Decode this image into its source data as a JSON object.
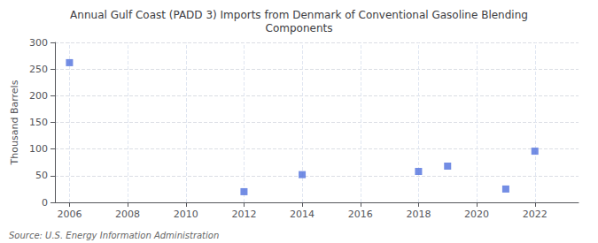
{
  "chart_data": {
    "type": "scatter",
    "title": "Annual Gulf Coast (PADD 3) Imports from Denmark of Conventional Gasoline Blending\nComponents",
    "ylabel": "Thousand Barrels",
    "annotation": "Source: U.S. Energy Information Administration",
    "x": [
      2006,
      2012,
      2014,
      2018,
      2019,
      2021,
      2022
    ],
    "values": [
      262,
      20,
      52,
      58,
      68,
      25,
      96
    ],
    "xlim": [
      2005.5,
      2023.5
    ],
    "xticks": [
      2006,
      2008,
      2010,
      2012,
      2014,
      2016,
      2018,
      2020,
      2022
    ],
    "ylim": [
      0,
      300
    ],
    "yticks": [
      0,
      50,
      100,
      150,
      200,
      250,
      300
    ],
    "grid": true,
    "marker": "square"
  }
}
